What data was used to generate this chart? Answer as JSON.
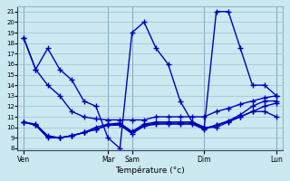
{
  "xlabel": "Température (°c)",
  "background_color": "#cce8f0",
  "grid_color": "#88bbcc",
  "line_color": "#0000bb",
  "ylim": [
    7.8,
    21.5
  ],
  "yticks": [
    8,
    9,
    10,
    11,
    12,
    13,
    14,
    15,
    16,
    17,
    18,
    19,
    20,
    21
  ],
  "day_labels": [
    "Ven",
    "Mar",
    "Sam",
    "Dim",
    "Lun"
  ],
  "day_positions": [
    0,
    7,
    9,
    15,
    21
  ],
  "n_points": 22,
  "lines": [
    [
      18.5,
      15.5,
      14.0,
      13.0,
      11.5,
      11.0,
      10.8,
      10.7,
      10.7,
      10.7,
      10.7,
      11.0,
      11.0,
      11.0,
      11.0,
      11.0,
      11.5,
      11.8,
      12.2,
      12.5,
      12.8,
      13.0
    ],
    [
      10.5,
      10.3,
      9.2,
      9.0,
      9.2,
      9.5,
      10.0,
      10.3,
      10.4,
      9.6,
      10.3,
      10.5,
      10.5,
      10.5,
      10.5,
      10.0,
      10.0,
      10.5,
      11.0,
      11.5,
      12.0,
      12.3
    ],
    [
      10.5,
      10.2,
      9.0,
      9.0,
      9.2,
      9.5,
      9.8,
      10.2,
      10.3,
      9.5,
      10.2,
      10.4,
      10.4,
      10.4,
      10.4,
      9.9,
      10.2,
      10.6,
      11.2,
      12.0,
      12.5,
      12.5
    ],
    [
      10.5,
      10.2,
      9.1,
      9.0,
      9.2,
      9.5,
      9.8,
      10.2,
      10.2,
      9.4,
      10.1,
      10.3,
      10.3,
      10.3,
      10.3,
      9.8,
      10.2,
      10.6,
      11.0,
      11.5,
      11.5,
      11.0
    ],
    [
      18.5,
      15.5,
      17.5,
      15.5,
      14.5,
      12.5,
      12.0,
      9.0,
      8.0,
      19.0,
      20.0,
      17.5,
      16.0,
      12.5,
      10.5,
      10.0,
      21.0,
      21.0,
      17.5,
      14.0,
      14.0,
      13.0
    ]
  ],
  "marker": "+",
  "marker_size": 4,
  "line_width": 1.0
}
